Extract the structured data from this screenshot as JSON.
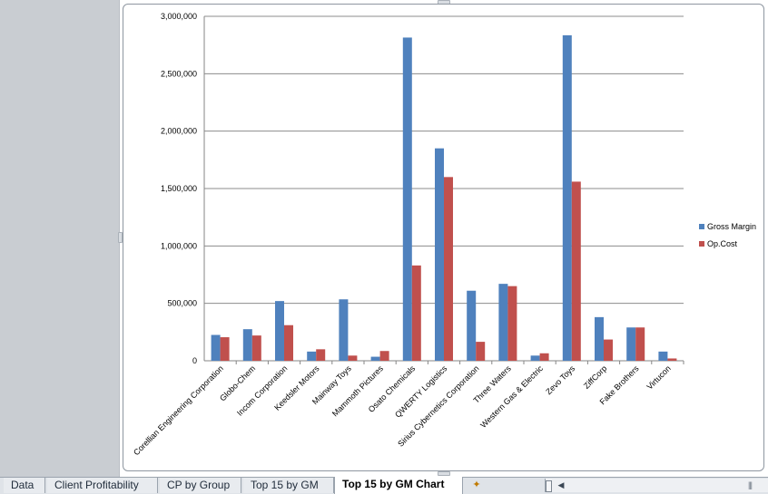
{
  "chart_data": {
    "type": "bar",
    "categories": [
      "Corellian Engineering Corporation",
      "Globo-Chem",
      "Incom Corporation",
      "Keedsler Motors",
      "Mainway Toys",
      "Mammoth Pictures",
      "Osato Chemicals",
      "QWERTY Logistics",
      "Sirius Cybernetics Corporation",
      "Three Waters",
      "Western Gas & Electric",
      "Zevo Toys",
      "ZiffCorp",
      "Fake Brothers",
      "Virtucon"
    ],
    "series": [
      {
        "name": "Gross Margin",
        "color": "#4f81bd",
        "values": [
          225000,
          275000,
          520000,
          80000,
          535000,
          35000,
          2815000,
          1850000,
          610000,
          670000,
          45000,
          2835000,
          380000,
          290000,
          80000
        ]
      },
      {
        "name": "Op.Cost",
        "color": "#c0504d",
        "values": [
          205000,
          220000,
          310000,
          100000,
          45000,
          85000,
          830000,
          1600000,
          165000,
          650000,
          65000,
          1560000,
          185000,
          290000,
          20000
        ]
      }
    ],
    "y_ticks": [
      "0",
      "500,000",
      "1,000,000",
      "1,500,000",
      "2,000,000",
      "2,500,000",
      "3,000,000"
    ],
    "ylim": [
      0,
      3000000
    ],
    "grid": true,
    "legend_position": "right"
  },
  "sheet_tabs": [
    {
      "label": "Data",
      "active": false
    },
    {
      "label": "Client Profitability",
      "active": false
    },
    {
      "label": "CP by Group",
      "active": false
    },
    {
      "label": "Top 15 by GM",
      "active": false
    },
    {
      "label": "Top 15 by GM Chart",
      "active": true
    }
  ],
  "icons": {
    "insert_sheet": "insert-worksheet-icon",
    "scroll_left": "scroll-left-arrow-icon"
  }
}
